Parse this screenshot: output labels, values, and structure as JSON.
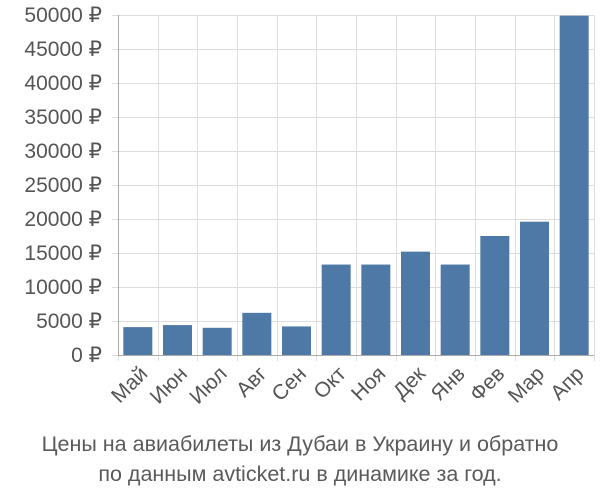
{
  "colors": {
    "bar": "#4e79a7",
    "grid": "#dddddd",
    "axis": "#aaaaaa",
    "text": "#555555"
  },
  "caption": {
    "line1": "Цены на авиабилеты из Дубаи в Украину и обратно",
    "line2": "по данным avticket.ru в динамике за год."
  },
  "chart_data": {
    "type": "bar",
    "categories": [
      "Май",
      "Июн",
      "Июл",
      "Авг",
      "Сен",
      "Окт",
      "Ноя",
      "Дек",
      "Янв",
      "Фев",
      "Мар",
      "Апр"
    ],
    "values": [
      4100,
      4400,
      4000,
      6200,
      4200,
      13300,
      13300,
      15200,
      13300,
      17500,
      19600,
      49900
    ],
    "ylim": [
      0,
      50000
    ],
    "yticks": [
      0,
      5000,
      10000,
      15000,
      20000,
      25000,
      30000,
      35000,
      40000,
      45000,
      50000
    ],
    "ytick_labels": [
      "0 ₽",
      "5000 ₽",
      "10000 ₽",
      "15000 ₽",
      "20000 ₽",
      "25000 ₽",
      "30000 ₽",
      "35000 ₽",
      "40000 ₽",
      "45000 ₽",
      "50000 ₽"
    ],
    "grid": true,
    "title": "",
    "xlabel": "",
    "ylabel": ""
  }
}
